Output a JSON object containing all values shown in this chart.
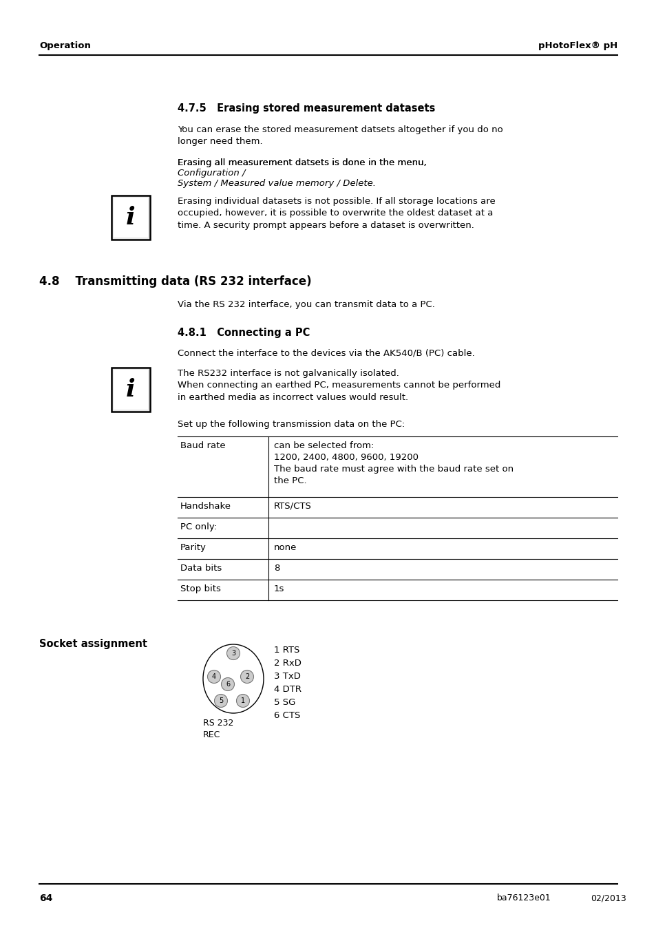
{
  "bg_color": "#ffffff",
  "text_color": "#000000",
  "header_left": "Operation",
  "header_right": "pHotoFlex® pH",
  "section_475_title": "4.7.5   Erasing stored measurement datasets",
  "section_475_p1": "You can erase the stored measurement datsets altogether if you do no\nlonger need them.",
  "section_475_p2_normal": "Erasing all measurement datsets is done in the menu, ",
  "section_475_p2_italic": "Configuration /\nSystem / Measured value memory / Delete.",
  "section_475_note": "Erasing individual datasets is not possible. If all storage locations are\noccupied, however, it is possible to overwrite the oldest dataset at a\ntime. A security prompt appears before a dataset is overwritten.",
  "section_48_title": "4.8    Transmitting data (RS 232 interface)",
  "section_48_p1": "Via the RS 232 interface, you can transmit data to a PC.",
  "section_481_title": "4.8.1   Connecting a PC",
  "section_481_p1": "Connect the interface to the devices via the AK540/B (PC) cable.",
  "section_481_note": "The RS232 interface is not galvanically isolated.\nWhen connecting an earthed PC, measurements cannot be performed\nin earthed media as incorrect values would result.",
  "section_481_p2": "Set up the following transmission data on the PC:",
  "table_rows": [
    {
      "label": "Baud rate",
      "value": "can be selected from:\n1200, 2400, 4800, 9600, 19200\nThe baud rate must agree with the baud rate set on\nthe PC."
    },
    {
      "label": "Handshake",
      "value": "RTS/CTS"
    },
    {
      "label": "PC only:",
      "value": ""
    },
    {
      "label": "Parity",
      "value": "none"
    },
    {
      "label": "Data bits",
      "value": "8"
    },
    {
      "label": "Stop bits",
      "value": "1s"
    }
  ],
  "socket_label": "Socket assignment",
  "socket_caption": "RS 232\nREC",
  "socket_pins": [
    "1 RTS",
    "2 RxD",
    "3 TxD",
    "4 DTR",
    "5 SG",
    "6 CTS"
  ],
  "footer_page": "64",
  "footer_code": "ba76123e01",
  "footer_date": "02/2013"
}
